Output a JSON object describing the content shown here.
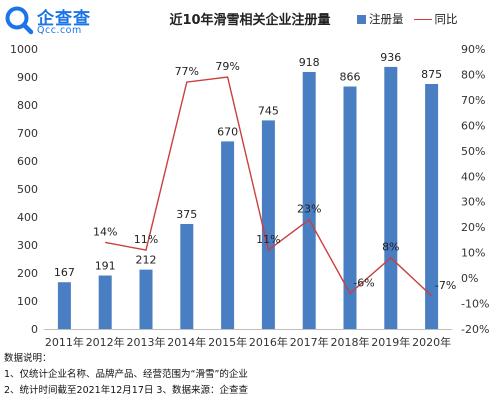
{
  "brand": {
    "name": "企查查",
    "domain": "Qcc.com"
  },
  "chart_data": {
    "type": "bar",
    "title": "近10年滑雪相关企业注册量",
    "categories": [
      "2011年",
      "2012年",
      "2013年",
      "2014年",
      "2015年",
      "2016年",
      "2017年",
      "2018年",
      "2019年",
      "2020年"
    ],
    "series": [
      {
        "name": "注册量",
        "type": "bar",
        "axis": "left",
        "values": [
          167,
          191,
          212,
          375,
          670,
          745,
          918,
          866,
          936,
          875
        ],
        "labels": [
          "167",
          "191",
          "212",
          "375",
          "670",
          "745",
          "918",
          "866",
          "936",
          "875"
        ]
      },
      {
        "name": "同比",
        "type": "line",
        "axis": "right",
        "values": [
          null,
          14,
          11,
          77,
          79,
          11,
          23,
          -6,
          8,
          -7
        ],
        "labels": [
          "",
          "14%",
          "11%",
          "77%",
          "79%",
          "11%",
          "23%",
          "-6%",
          "8%",
          "-7%"
        ]
      }
    ],
    "y_left": {
      "min": 0,
      "max": 1000,
      "step": 100,
      "ticks": [
        "0",
        "100",
        "200",
        "300",
        "400",
        "500",
        "600",
        "700",
        "800",
        "900",
        "1000"
      ]
    },
    "y_right": {
      "min": -20,
      "max": 90,
      "step": 10,
      "ticks": [
        "-20%",
        "-10%",
        "0%",
        "10%",
        "20%",
        "30%",
        "40%",
        "50%",
        "60%",
        "70%",
        "80%",
        "90%"
      ]
    },
    "grid": false,
    "legend": "top-right",
    "colors": {
      "bar": "#4a7ec2",
      "line": "#c9403e"
    }
  },
  "notes": {
    "heading": "数据说明：",
    "line1": "1、仅统计企业名称、品牌产品、经营范围为“滑雪”的企业",
    "line2": "2、统计时间截至2021年12月17日   3、数据来源：企查查"
  }
}
